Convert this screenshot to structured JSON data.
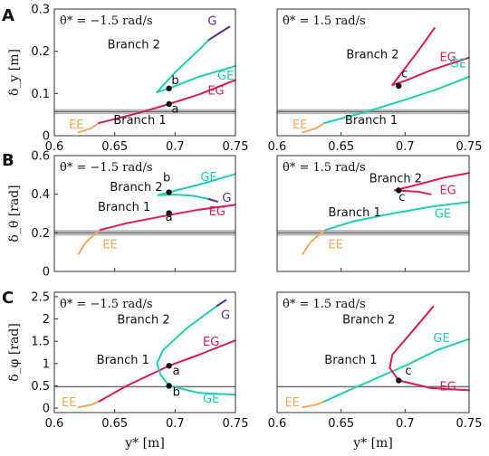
{
  "chart_data": [
    {
      "type": "line",
      "row": "A",
      "col": 0,
      "annotation": "θ̇* = −1.5 rad/s",
      "ylabel": "δ_y [m]",
      "xlim": [
        0.6,
        0.75
      ],
      "ylim": [
        0,
        0.3
      ],
      "yticks": [
        "0",
        "0.1",
        "0.2",
        "0.3"
      ],
      "xticks": [
        "0.6",
        "0.65",
        "0.7",
        "0.75"
      ],
      "band": [
        0.051,
        0.063
      ],
      "series": [
        {
          "name": "EE",
          "color": "#F0A85A",
          "x": [
            0.62,
            0.63,
            0.637
          ],
          "y": [
            0.008,
            0.017,
            0.03
          ]
        },
        {
          "name": "EG",
          "color": "#D81B5A",
          "x": [
            0.637,
            0.67,
            0.695,
            0.72,
            0.75
          ],
          "y": [
            0.03,
            0.054,
            0.075,
            0.098,
            0.132
          ]
        },
        {
          "name": "GE",
          "color": "#1ECFB0",
          "x": [
            0.75,
            0.72,
            0.695,
            0.685
          ],
          "y": [
            0.165,
            0.14,
            0.112,
            0.103
          ]
        },
        {
          "name": "GE",
          "color": "#1ECFB0",
          "x": [
            0.685,
            0.7,
            0.72,
            0.728
          ],
          "y": [
            0.103,
            0.15,
            0.204,
            0.227
          ]
        },
        {
          "name": "G",
          "color": "#5B2C8A",
          "x": [
            0.728,
            0.735,
            0.745
          ],
          "y": [
            0.227,
            0.24,
            0.258
          ]
        }
      ],
      "points": [
        {
          "label": "b",
          "x": 0.695,
          "y": 0.112
        },
        {
          "label": "a",
          "x": 0.695,
          "y": 0.075
        }
      ],
      "texts": [
        {
          "t": "Branch 2",
          "x": 0.644,
          "y": 0.207
        },
        {
          "t": "Branch 1",
          "x": 0.649,
          "y": 0.028
        },
        {
          "t": "G",
          "x": 0.727,
          "y": 0.262,
          "color": "#5B2C8A"
        },
        {
          "t": "GE",
          "x": 0.735,
          "y": 0.133,
          "color": "#1ECFB0"
        },
        {
          "t": "EG",
          "x": 0.727,
          "y": 0.098,
          "color": "#D81B5A"
        },
        {
          "t": "EE",
          "x": 0.612,
          "y": 0.017,
          "color": "#F0A85A"
        },
        {
          "t": "b",
          "x": 0.697,
          "y": 0.122
        },
        {
          "t": "a",
          "x": 0.697,
          "y": 0.055
        }
      ]
    },
    {
      "type": "line",
      "row": "A",
      "col": 1,
      "annotation": "θ̇* = 1.5 rad/s",
      "ylabel": "",
      "xlim": [
        0.6,
        0.75
      ],
      "ylim": [
        0,
        0.3
      ],
      "yticks": [],
      "xticks": [
        "0.6",
        "0.65",
        "0.7",
        "0.75"
      ],
      "band": [
        0.051,
        0.063
      ],
      "series": [
        {
          "name": "EE",
          "color": "#F0A85A",
          "x": [
            0.62,
            0.63,
            0.637
          ],
          "y": [
            0.008,
            0.017,
            0.03
          ]
        },
        {
          "name": "GE",
          "color": "#1ECFB0",
          "x": [
            0.637,
            0.67,
            0.7,
            0.725,
            0.75
          ],
          "y": [
            0.03,
            0.057,
            0.085,
            0.11,
            0.14
          ]
        },
        {
          "name": "EG",
          "color": "#D81B5A",
          "x": [
            0.75,
            0.72,
            0.7,
            0.69,
            0.695,
            0.71,
            0.723
          ],
          "y": [
            0.185,
            0.155,
            0.13,
            0.12,
            0.14,
            0.2,
            0.255
          ]
        }
      ],
      "points": [
        {
          "label": "c",
          "x": 0.695,
          "y": 0.118
        }
      ],
      "texts": [
        {
          "t": "Branch 2",
          "x": 0.654,
          "y": 0.183
        },
        {
          "t": "Branch 1",
          "x": 0.653,
          "y": 0.028
        },
        {
          "t": "EG",
          "x": 0.727,
          "y": 0.177,
          "color": "#D81B5A"
        },
        {
          "t": "GE",
          "x": 0.735,
          "y": 0.162,
          "color": "#1ECFB0"
        },
        {
          "t": "EE",
          "x": 0.612,
          "y": 0.017,
          "color": "#F0A85A"
        },
        {
          "t": "c",
          "x": 0.697,
          "y": 0.138
        }
      ]
    },
    {
      "type": "line",
      "row": "B",
      "col": 0,
      "annotation": "θ̇* = −1.5 rad/s",
      "ylabel": "δ_θ [rad]",
      "xlim": [
        0.6,
        0.75
      ],
      "ylim": [
        0,
        0.6
      ],
      "yticks": [
        "0",
        "0.2",
        "0.4",
        "0.6"
      ],
      "xticks": [],
      "band": [
        0.185,
        0.215
      ],
      "series": [
        {
          "name": "EE",
          "color": "#F0A85A",
          "x": [
            0.62,
            0.626,
            0.633,
            0.638
          ],
          "y": [
            0.09,
            0.15,
            0.19,
            0.215
          ]
        },
        {
          "name": "EG",
          "color": "#D81B5A",
          "x": [
            0.638,
            0.66,
            0.695,
            0.72,
            0.75
          ],
          "y": [
            0.215,
            0.25,
            0.292,
            0.32,
            0.345
          ]
        },
        {
          "name": "GE",
          "color": "#1ECFB0",
          "x": [
            0.686,
            0.695,
            0.72,
            0.75
          ],
          "y": [
            0.395,
            0.41,
            0.45,
            0.505
          ]
        },
        {
          "name": "GE",
          "color": "#1ECFB0",
          "x": [
            0.686,
            0.7,
            0.715,
            0.728
          ],
          "y": [
            0.395,
            0.398,
            0.392,
            0.375
          ]
        },
        {
          "name": "G",
          "color": "#5B2C8A",
          "x": [
            0.728,
            0.735
          ],
          "y": [
            0.375,
            0.362
          ]
        }
      ],
      "points": [
        {
          "label": "b",
          "x": 0.695,
          "y": 0.41
        },
        {
          "label": "a",
          "x": 0.695,
          "y": 0.302
        }
      ],
      "texts": [
        {
          "t": "GE",
          "x": 0.721,
          "y": 0.468,
          "color": "#1ECFB0"
        },
        {
          "t": "Branch 2",
          "x": 0.646,
          "y": 0.418
        },
        {
          "t": "G",
          "x": 0.739,
          "y": 0.362,
          "color": "#5B2C8A"
        },
        {
          "t": "Branch 1",
          "x": 0.636,
          "y": 0.315
        },
        {
          "t": "EG",
          "x": 0.728,
          "y": 0.29,
          "color": "#D81B5A"
        },
        {
          "t": "EE",
          "x": 0.64,
          "y": 0.12,
          "color": "#F0A85A"
        },
        {
          "t": "b",
          "x": 0.69,
          "y": 0.467
        },
        {
          "t": "a",
          "x": 0.692,
          "y": 0.262
        }
      ]
    },
    {
      "type": "line",
      "row": "B",
      "col": 1,
      "annotation": "θ̇* = 1.5 rad/s",
      "ylabel": "",
      "xlim": [
        0.6,
        0.75
      ],
      "ylim": [
        0,
        0.6
      ],
      "yticks": [],
      "xticks": [],
      "band": [
        0.185,
        0.215
      ],
      "series": [
        {
          "name": "EE",
          "color": "#F0A85A",
          "x": [
            0.62,
            0.626,
            0.633,
            0.638
          ],
          "y": [
            0.09,
            0.15,
            0.19,
            0.215
          ]
        },
        {
          "name": "GE",
          "color": "#1ECFB0",
          "x": [
            0.638,
            0.66,
            0.69,
            0.72,
            0.75
          ],
          "y": [
            0.215,
            0.26,
            0.3,
            0.335,
            0.36
          ]
        },
        {
          "name": "EG",
          "color": "#D81B5A",
          "x": [
            0.692,
            0.71,
            0.73,
            0.75
          ],
          "y": [
            0.42,
            0.45,
            0.485,
            0.51
          ]
        },
        {
          "name": "EG",
          "color": "#D81B5A",
          "x": [
            0.692,
            0.71,
            0.72
          ],
          "y": [
            0.42,
            0.413,
            0.4
          ]
        }
      ],
      "points": [
        {
          "label": "c",
          "x": 0.695,
          "y": 0.42
        }
      ],
      "texts": [
        {
          "t": "Branch 2",
          "x": 0.672,
          "y": 0.462
        },
        {
          "t": "EG",
          "x": 0.727,
          "y": 0.4,
          "color": "#D81B5A"
        },
        {
          "t": "c",
          "x": 0.695,
          "y": 0.365
        },
        {
          "t": "Branch 1",
          "x": 0.64,
          "y": 0.285
        },
        {
          "t": "GE",
          "x": 0.723,
          "y": 0.28,
          "color": "#1ECFB0"
        },
        {
          "t": "EE",
          "x": 0.64,
          "y": 0.12,
          "color": "#F0A85A"
        }
      ]
    },
    {
      "type": "line",
      "row": "C",
      "col": 0,
      "annotation": "θ̇* = −1.5 rad/s",
      "ylabel": "δ_φ [rad]",
      "xlim": [
        0.6,
        0.75
      ],
      "ylim": [
        -0.1,
        2.6
      ],
      "yticks": [
        "0",
        "0.5",
        "1",
        "1.5",
        "2",
        "2.5"
      ],
      "xticks": [
        "0.6",
        "0.65",
        "0.7",
        "0.75"
      ],
      "band": [
        0.46,
        0.5
      ],
      "series": [
        {
          "name": "EE",
          "color": "#F0A85A",
          "x": [
            0.62,
            0.63,
            0.637
          ],
          "y": [
            0.02,
            0.07,
            0.15
          ]
        },
        {
          "name": "EG",
          "color": "#D81B5A",
          "x": [
            0.637,
            0.66,
            0.695,
            0.72,
            0.75
          ],
          "y": [
            0.15,
            0.5,
            0.95,
            1.2,
            1.52
          ]
        },
        {
          "name": "GE",
          "color": "#1ECFB0",
          "x": [
            0.75,
            0.72,
            0.695,
            0.688,
            0.685,
            0.69,
            0.71,
            0.735
          ],
          "y": [
            0.3,
            0.34,
            0.5,
            0.75,
            1.0,
            1.3,
            1.8,
            2.3
          ]
        },
        {
          "name": "G",
          "color": "#5B2C8A",
          "x": [
            0.735,
            0.742
          ],
          "y": [
            2.3,
            2.42
          ]
        }
      ],
      "points": [
        {
          "label": "a",
          "x": 0.695,
          "y": 0.95
        },
        {
          "label": "b",
          "x": 0.695,
          "y": 0.5
        }
      ],
      "texts": [
        {
          "t": "G",
          "x": 0.738,
          "y": 2.0,
          "color": "#5B2C8A"
        },
        {
          "t": "Branch 2",
          "x": 0.652,
          "y": 1.9
        },
        {
          "t": "EG",
          "x": 0.723,
          "y": 1.4,
          "color": "#D81B5A"
        },
        {
          "t": "Branch 1",
          "x": 0.635,
          "y": 1.0
        },
        {
          "t": "a",
          "x": 0.698,
          "y": 0.75
        },
        {
          "t": "b",
          "x": 0.698,
          "y": 0.28
        },
        {
          "t": "GE",
          "x": 0.723,
          "y": 0.12,
          "color": "#1ECFB0"
        },
        {
          "t": "EE",
          "x": 0.606,
          "y": 0.04,
          "color": "#F0A85A"
        }
      ]
    },
    {
      "type": "line",
      "row": "C",
      "col": 1,
      "annotation": "θ̇* = 1.5 rad/s",
      "ylabel": "",
      "xlim": [
        0.6,
        0.75
      ],
      "ylim": [
        -0.1,
        2.6
      ],
      "yticks": [],
      "xticks": [
        "0.6",
        "0.65",
        "0.7",
        "0.75"
      ],
      "band": [
        0.46,
        0.5
      ],
      "series": [
        {
          "name": "EE",
          "color": "#F0A85A",
          "x": [
            0.62,
            0.63,
            0.637
          ],
          "y": [
            0.02,
            0.07,
            0.15
          ]
        },
        {
          "name": "GE",
          "color": "#1ECFB0",
          "x": [
            0.637,
            0.66,
            0.7,
            0.725,
            0.75
          ],
          "y": [
            0.15,
            0.45,
            0.95,
            1.3,
            1.55
          ]
        },
        {
          "name": "EG",
          "color": "#D81B5A",
          "x": [
            0.75,
            0.72,
            0.695,
            0.688,
            0.69,
            0.705,
            0.722
          ],
          "y": [
            0.4,
            0.45,
            0.62,
            0.9,
            1.2,
            1.7,
            2.28
          ]
        }
      ],
      "points": [
        {
          "label": "c",
          "x": 0.695,
          "y": 0.62
        }
      ],
      "texts": [
        {
          "t": "Branch 2",
          "x": 0.651,
          "y": 1.9
        },
        {
          "t": "GE",
          "x": 0.722,
          "y": 1.48,
          "color": "#1ECFB0"
        },
        {
          "t": "Branch 1",
          "x": 0.637,
          "y": 1.0
        },
        {
          "t": "c",
          "x": 0.7,
          "y": 0.75
        },
        {
          "t": "EG",
          "x": 0.727,
          "y": 0.4,
          "color": "#D81B5A"
        },
        {
          "t": "EE",
          "x": 0.606,
          "y": 0.04,
          "color": "#F0A85A"
        }
      ]
    }
  ],
  "panel_labels": [
    "A",
    "B",
    "C"
  ],
  "xlabel": "y* [m]"
}
